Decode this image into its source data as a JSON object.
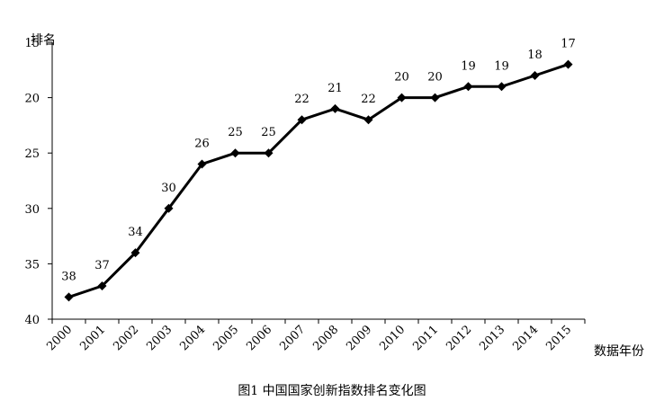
{
  "chart_data": {
    "type": "line",
    "title": "",
    "caption": "图1 中国国家创新指数排名变化图",
    "ylabel": "排名",
    "xlabel": "数据年份",
    "y_inverted": true,
    "ylim": [
      15,
      40
    ],
    "yticks": [
      15,
      20,
      25,
      30,
      35,
      40
    ],
    "grid": false,
    "legend": "none",
    "line_color": "#000000",
    "marker": "diamond",
    "categories": [
      "2000",
      "2001",
      "2002",
      "2003",
      "2004",
      "2005",
      "2006",
      "2007",
      "2008",
      "2009",
      "2010",
      "2011",
      "2012",
      "2013",
      "2014",
      "2015"
    ],
    "series": [
      {
        "values": [
          38,
          37,
          34,
          30,
          26,
          25,
          25,
          22,
          21,
          22,
          20,
          20,
          19,
          19,
          18,
          17
        ]
      }
    ]
  }
}
